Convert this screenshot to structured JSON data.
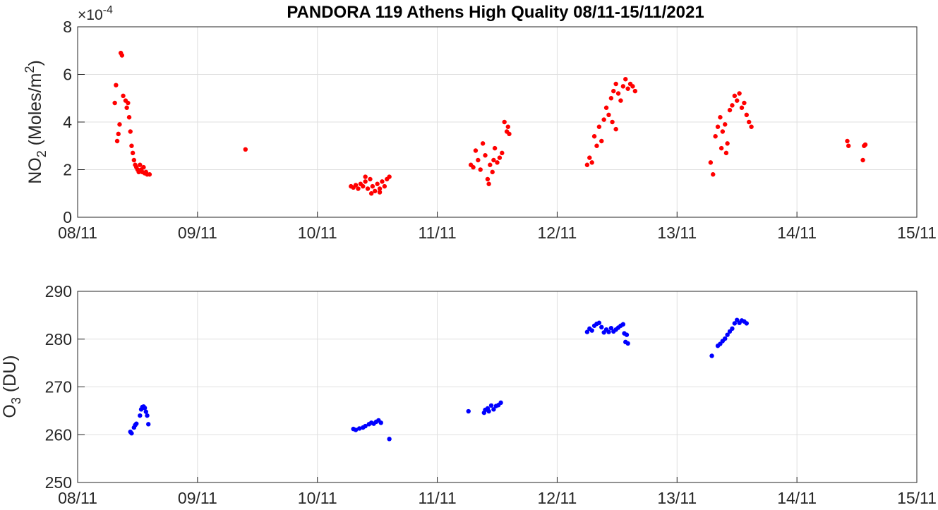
{
  "title": "PANDORA 119 Athens High Quality 08/11-15/11/2021",
  "colors": {
    "no2": "#ff0000",
    "o3": "#0000ff",
    "grid": "#dfdfdf",
    "axis": "#262626"
  },
  "chart_data": [
    {
      "type": "scatter",
      "xlabel": "",
      "ylabel_main": "NO",
      "ylabel_sub": "2",
      "ylabel_rest": " (Moles/m",
      "ylabel_sup": "2",
      "ylabel_end": ")",
      "multiplier_base": "×10",
      "multiplier_exp": "-4",
      "xlim": [
        0,
        7
      ],
      "ylim": [
        0,
        8
      ],
      "x_ticks": [
        "08/11",
        "09/11",
        "10/11",
        "11/11",
        "12/11",
        "13/11",
        "14/11",
        "15/11"
      ],
      "y_ticks": [
        "0",
        "2",
        "4",
        "6",
        "8"
      ],
      "grid": true,
      "series": [
        {
          "color": "#ff0000",
          "points": [
            [
              0.31,
              4.8
            ],
            [
              0.32,
              5.55
            ],
            [
              0.33,
              3.2
            ],
            [
              0.34,
              3.5
            ],
            [
              0.35,
              3.9
            ],
            [
              0.36,
              6.9
            ],
            [
              0.37,
              6.8
            ],
            [
              0.38,
              5.1
            ],
            [
              0.4,
              4.9
            ],
            [
              0.41,
              4.6
            ],
            [
              0.42,
              4.8
            ],
            [
              0.43,
              4.2
            ],
            [
              0.44,
              3.6
            ],
            [
              0.45,
              3.0
            ],
            [
              0.46,
              2.7
            ],
            [
              0.47,
              2.4
            ],
            [
              0.48,
              2.2
            ],
            [
              0.49,
              2.1
            ],
            [
              0.5,
              2.0
            ],
            [
              0.51,
              1.9
            ],
            [
              0.52,
              2.2
            ],
            [
              0.53,
              2.0
            ],
            [
              0.54,
              1.9
            ],
            [
              0.55,
              2.1
            ],
            [
              0.56,
              1.85
            ],
            [
              0.57,
              1.9
            ],
            [
              0.58,
              1.8
            ],
            [
              0.6,
              1.8
            ],
            [
              1.4,
              2.85
            ],
            [
              2.28,
              1.3
            ],
            [
              2.3,
              1.25
            ],
            [
              2.32,
              1.35
            ],
            [
              2.34,
              1.2
            ],
            [
              2.36,
              1.4
            ],
            [
              2.38,
              1.3
            ],
            [
              2.4,
              1.5
            ],
            [
              2.42,
              1.2
            ],
            [
              2.44,
              1.6
            ],
            [
              2.46,
              1.3
            ],
            [
              2.48,
              1.1
            ],
            [
              2.5,
              1.4
            ],
            [
              2.52,
              1.2
            ],
            [
              2.54,
              1.5
            ],
            [
              2.56,
              1.3
            ],
            [
              2.58,
              1.6
            ],
            [
              2.6,
              1.7
            ],
            [
              2.45,
              1.0
            ],
            [
              2.52,
              1.05
            ],
            [
              2.4,
              1.7
            ],
            [
              3.28,
              2.2
            ],
            [
              3.3,
              2.1
            ],
            [
              3.32,
              2.8
            ],
            [
              3.34,
              2.4
            ],
            [
              3.36,
              2.0
            ],
            [
              3.38,
              3.1
            ],
            [
              3.4,
              2.6
            ],
            [
              3.42,
              1.6
            ],
            [
              3.44,
              2.2
            ],
            [
              3.46,
              1.9
            ],
            [
              3.48,
              2.9
            ],
            [
              3.5,
              2.3
            ],
            [
              3.52,
              2.5
            ],
            [
              3.54,
              2.7
            ],
            [
              3.56,
              4.0
            ],
            [
              3.58,
              3.6
            ],
            [
              3.6,
              3.5
            ],
            [
              3.59,
              3.8
            ],
            [
              3.43,
              1.4
            ],
            [
              3.47,
              2.4
            ],
            [
              4.25,
              2.2
            ],
            [
              4.27,
              2.5
            ],
            [
              4.29,
              2.3
            ],
            [
              4.31,
              3.4
            ],
            [
              4.33,
              3.0
            ],
            [
              4.35,
              3.8
            ],
            [
              4.37,
              3.2
            ],
            [
              4.39,
              4.1
            ],
            [
              4.41,
              4.6
            ],
            [
              4.43,
              4.3
            ],
            [
              4.45,
              5.0
            ],
            [
              4.47,
              5.3
            ],
            [
              4.49,
              5.6
            ],
            [
              4.51,
              5.2
            ],
            [
              4.53,
              4.9
            ],
            [
              4.55,
              5.5
            ],
            [
              4.57,
              5.8
            ],
            [
              4.59,
              5.4
            ],
            [
              4.61,
              5.6
            ],
            [
              4.63,
              5.5
            ],
            [
              4.65,
              5.3
            ],
            [
              4.46,
              4.0
            ],
            [
              4.49,
              3.7
            ],
            [
              5.28,
              2.3
            ],
            [
              5.3,
              1.8
            ],
            [
              5.32,
              3.4
            ],
            [
              5.34,
              3.8
            ],
            [
              5.36,
              4.2
            ],
            [
              5.38,
              3.6
            ],
            [
              5.4,
              3.9
            ],
            [
              5.42,
              3.1
            ],
            [
              5.44,
              4.5
            ],
            [
              5.46,
              4.7
            ],
            [
              5.48,
              5.1
            ],
            [
              5.5,
              4.9
            ],
            [
              5.52,
              5.2
            ],
            [
              5.54,
              4.6
            ],
            [
              5.56,
              4.8
            ],
            [
              5.58,
              4.3
            ],
            [
              5.6,
              4.0
            ],
            [
              5.62,
              3.8
            ],
            [
              5.41,
              2.7
            ],
            [
              5.37,
              2.9
            ],
            [
              6.42,
              3.2
            ],
            [
              6.43,
              3.0
            ],
            [
              6.55,
              2.4
            ],
            [
              6.56,
              3.0
            ],
            [
              6.57,
              3.05
            ]
          ]
        }
      ]
    },
    {
      "type": "scatter",
      "xlabel": "",
      "ylabel_main": "O",
      "ylabel_sub": "3",
      "ylabel_rest": " (DU)",
      "xlim": [
        0,
        7
      ],
      "ylim": [
        250,
        290
      ],
      "x_ticks": [
        "08/11",
        "09/11",
        "10/11",
        "11/11",
        "12/11",
        "13/11",
        "14/11",
        "15/11"
      ],
      "y_ticks": [
        "250",
        "260",
        "270",
        "280",
        "290"
      ],
      "grid": true,
      "series": [
        {
          "color": "#0000ff",
          "points": [
            [
              0.44,
              260.6
            ],
            [
              0.45,
              260.3
            ],
            [
              0.47,
              261.5
            ],
            [
              0.48,
              262.0
            ],
            [
              0.49,
              262.3
            ],
            [
              0.52,
              264.0
            ],
            [
              0.53,
              265.3
            ],
            [
              0.54,
              265.8
            ],
            [
              0.55,
              265.9
            ],
            [
              0.56,
              265.6
            ],
            [
              0.57,
              264.8
            ],
            [
              0.58,
              264.0
            ],
            [
              0.59,
              262.2
            ],
            [
              2.3,
              261.2
            ],
            [
              2.32,
              261.0
            ],
            [
              2.35,
              261.3
            ],
            [
              2.38,
              261.5
            ],
            [
              2.4,
              261.8
            ],
            [
              2.43,
              262.2
            ],
            [
              2.45,
              262.5
            ],
            [
              2.47,
              262.3
            ],
            [
              2.49,
              262.7
            ],
            [
              2.51,
              263.0
            ],
            [
              2.53,
              262.5
            ],
            [
              2.6,
              259.1
            ],
            [
              3.26,
              264.9
            ],
            [
              3.39,
              264.6
            ],
            [
              3.4,
              265.2
            ],
            [
              3.42,
              265.5
            ],
            [
              3.43,
              264.9
            ],
            [
              3.45,
              266.1
            ],
            [
              3.47,
              265.3
            ],
            [
              3.49,
              266.0
            ],
            [
              3.51,
              266.2
            ],
            [
              3.53,
              266.7
            ],
            [
              4.25,
              281.5
            ],
            [
              4.27,
              282.2
            ],
            [
              4.29,
              281.8
            ],
            [
              4.31,
              282.8
            ],
            [
              4.33,
              283.2
            ],
            [
              4.35,
              283.4
            ],
            [
              4.37,
              282.5
            ],
            [
              4.39,
              281.4
            ],
            [
              4.41,
              282.0
            ],
            [
              4.43,
              281.5
            ],
            [
              4.45,
              282.3
            ],
            [
              4.47,
              281.6
            ],
            [
              4.49,
              282.0
            ],
            [
              4.51,
              282.4
            ],
            [
              4.53,
              282.8
            ],
            [
              4.55,
              283.1
            ],
            [
              4.56,
              281.2
            ],
            [
              4.58,
              280.9
            ],
            [
              4.57,
              279.4
            ],
            [
              4.59,
              279.1
            ],
            [
              5.29,
              276.5
            ],
            [
              5.34,
              278.6
            ],
            [
              5.36,
              279.0
            ],
            [
              5.38,
              279.6
            ],
            [
              5.4,
              280.1
            ],
            [
              5.42,
              280.9
            ],
            [
              5.44,
              281.6
            ],
            [
              5.46,
              282.2
            ],
            [
              5.48,
              283.3
            ],
            [
              5.5,
              284.0
            ],
            [
              5.52,
              283.4
            ],
            [
              5.54,
              283.9
            ],
            [
              5.56,
              283.7
            ],
            [
              5.58,
              283.3
            ]
          ]
        }
      ]
    }
  ]
}
